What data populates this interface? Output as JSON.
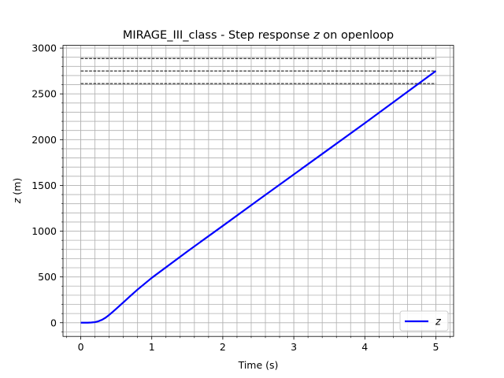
{
  "chart_data": {
    "type": "line",
    "title": "MIRAGE_III_class - Step response z on openloop",
    "title_prefix": "MIRAGE_III_class - Step response ",
    "title_var": "z",
    "title_suffix": " on openloop",
    "xlabel": "Time (s)",
    "ylabel_var": "z",
    "ylabel_unit": " (m)",
    "xlim": [
      -0.25,
      5.25
    ],
    "ylim": [
      -150,
      3030
    ],
    "xticks": [
      0,
      1,
      2,
      3,
      4,
      5
    ],
    "xtick_labels": [
      "0",
      "1",
      "2",
      "3",
      "4",
      "5"
    ],
    "yticks": [
      0,
      500,
      1000,
      1500,
      2000,
      2500,
      3000
    ],
    "ytick_labels": [
      "0",
      "500",
      "1000",
      "1500",
      "2000",
      "2500",
      "3000"
    ],
    "grid": "major and minor",
    "legend": {
      "position": "bottom-right",
      "entries": [
        "z"
      ]
    },
    "series": [
      {
        "name": "z",
        "color": "#0000ff",
        "x": [
          0,
          0.05,
          0.1,
          0.15,
          0.2,
          0.25,
          0.3,
          0.35,
          0.4,
          0.45,
          0.5,
          0.6,
          0.7,
          0.8,
          1.0,
          1.5,
          2.0,
          2.5,
          3.0,
          3.5,
          4.0,
          4.5,
          5.0
        ],
        "y": [
          0,
          0,
          0,
          2,
          6,
          16,
          32,
          55,
          85,
          118,
          152,
          222,
          293,
          362,
          490,
          778,
          1058,
          1340,
          1620,
          1900,
          2180,
          2465,
          2750
        ]
      }
    ],
    "reference_lines": [
      {
        "y": 2887,
        "style": "dashed",
        "color": "#000000",
        "xrange": [
          0,
          5
        ]
      },
      {
        "y": 2750,
        "style": "dashed",
        "color": "#000000",
        "xrange": [
          0,
          5
        ]
      },
      {
        "y": 2612,
        "style": "dashed",
        "color": "#000000",
        "xrange": [
          0,
          5
        ]
      }
    ]
  }
}
